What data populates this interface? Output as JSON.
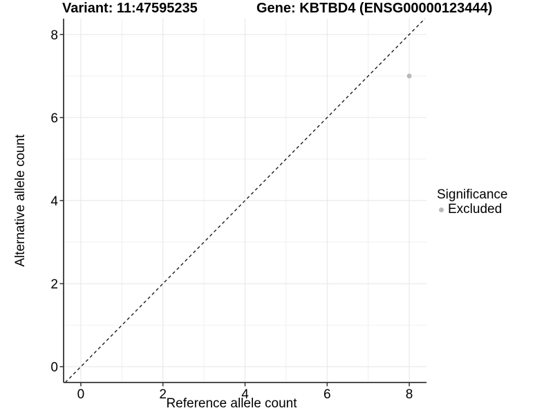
{
  "chart_data": {
    "type": "scatter",
    "title_left": "Variant: 11:47595235",
    "title_right": "Gene: KBTBD4 (ENSG00000123444)",
    "xlabel": "Reference allele count",
    "ylabel": "Alternative allele count",
    "xlim": [
      -0.42,
      8.42
    ],
    "ylim": [
      -0.38,
      8.38
    ],
    "xticks": [
      0,
      2,
      4,
      6,
      8
    ],
    "yticks": [
      0,
      2,
      4,
      6,
      8
    ],
    "xminor": [
      1,
      3,
      5,
      7
    ],
    "yminor": [
      1,
      3,
      5,
      7
    ],
    "grid": "major and minor gridlines on, white panel background",
    "reference_line": {
      "type": "identity",
      "slope": 1,
      "intercept": 0,
      "style": "dashed"
    },
    "series": [
      {
        "name": "Excluded",
        "points": [
          {
            "x": 8,
            "y": 7
          }
        ]
      }
    ],
    "legend": {
      "title": "Significance",
      "position": "right",
      "items": [
        {
          "label": "Excluded",
          "color": "#b9b9b9"
        }
      ]
    }
  },
  "colors": {
    "background": "#ffffff",
    "grid_major": "#e5e5e5",
    "grid_minor": "#f0f0f0",
    "axis_line": "#333333",
    "tick_mark": "#333333",
    "text": "#000000",
    "point": "#b9b9b9",
    "reference_line": "#1a1a1a"
  }
}
